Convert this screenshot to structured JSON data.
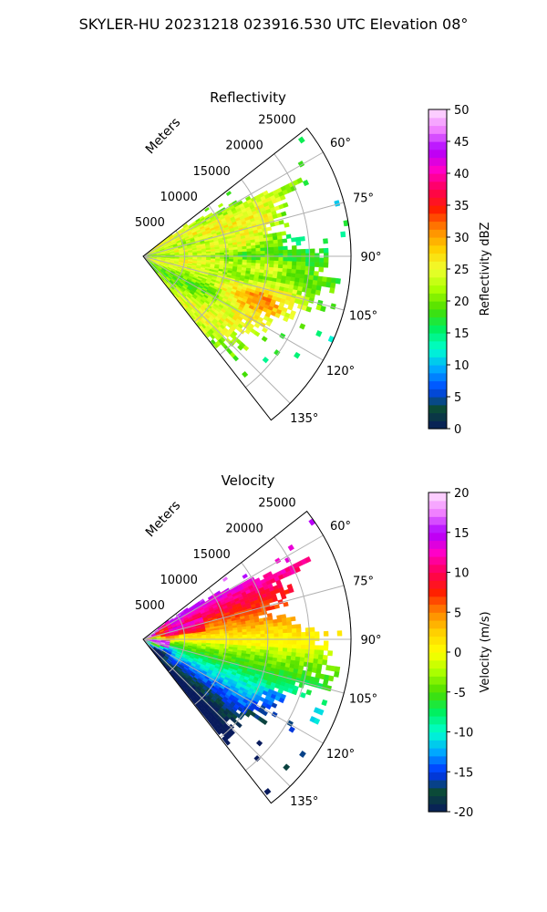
{
  "suptitle": "SKYLER-HU  20231218  023916.530 UTC Elevation 08°",
  "chart_data": [
    {
      "type": "polar-sector-heatmap",
      "title": "Reflectivity",
      "radial_label": "Meters",
      "radial_ticks": [
        5000,
        10000,
        15000,
        20000,
        25000
      ],
      "r_max": 25000,
      "theta_ticks": [
        "60°",
        "75°",
        "90°",
        "105°",
        "120°",
        "135°"
      ],
      "theta_tick_values": [
        60,
        75,
        90,
        105,
        120,
        135
      ],
      "theta_range": [
        52,
        142
      ],
      "grid": true,
      "colorbar": {
        "label": "Reflectivity dBZ",
        "min": 0,
        "max": 50,
        "ticks": [
          0,
          5,
          10,
          15,
          20,
          25,
          30,
          35,
          40,
          45,
          50
        ],
        "colormap": "nws-reflectivity-like",
        "stops": [
          "#081a5c",
          "#0b4a38",
          "#0047ff",
          "#00a8ff",
          "#00ffd0",
          "#00f060",
          "#48dd00",
          "#aaff00",
          "#f0ff30",
          "#ffd000",
          "#ff8800",
          "#ff2000",
          "#ff0055",
          "#ff00c8",
          "#b000ff",
          "#f080ff",
          "#ffe0ff"
        ]
      },
      "data_summary": {
        "range_covered_m": [
          0,
          22000
        ],
        "dominant_values_dbz": [
          18,
          30
        ],
        "peak_value_dbz": 36
      }
    },
    {
      "type": "polar-sector-heatmap",
      "title": "Velocity",
      "radial_label": "Meters",
      "radial_ticks": [
        5000,
        10000,
        15000,
        20000,
        25000
      ],
      "r_max": 25000,
      "theta_ticks": [
        "60°",
        "75°",
        "90°",
        "105°",
        "120°",
        "135°"
      ],
      "theta_tick_values": [
        60,
        75,
        90,
        105,
        120,
        135
      ],
      "theta_range": [
        52,
        142
      ],
      "grid": true,
      "colorbar": {
        "label": "Velocity (m/s)",
        "min": -20,
        "max": 20,
        "ticks": [
          -20,
          -15,
          -10,
          -5,
          0,
          5,
          10,
          15,
          20
        ],
        "colormap": "velocity-diverging",
        "stops": [
          "#081a5c",
          "#0b4a38",
          "#0033ff",
          "#00a8ff",
          "#00ffd0",
          "#00f060",
          "#48dd00",
          "#aaff00",
          "#ffff00",
          "#ffd000",
          "#ff8800",
          "#ff2000",
          "#ff0055",
          "#ff00c8",
          "#b000ff",
          "#f080ff",
          "#ffe0ff"
        ]
      },
      "data_summary": {
        "range_covered_m": [
          0,
          22000
        ],
        "north_sector_velocity_ms": [
          5,
          12
        ],
        "south_sector_velocity_ms": [
          -14,
          -4
        ],
        "near_range_folded": true
      }
    }
  ]
}
